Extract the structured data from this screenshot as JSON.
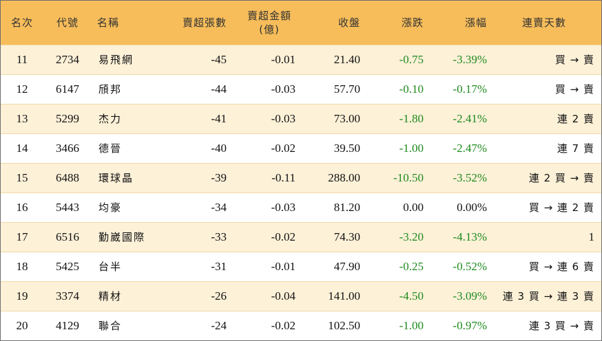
{
  "headers": {
    "rank": "名次",
    "code": "代號",
    "name": "名稱",
    "net_sell_lots": "賣超張數",
    "net_sell_amount_line1": "賣超金額",
    "net_sell_amount_line2": "(億)",
    "close": "收盤",
    "change": "漲跌",
    "change_pct": "漲幅",
    "streak": "連賣天數"
  },
  "rows": [
    {
      "rank": "11",
      "code": "2734",
      "name": "易飛網",
      "lots": "-45",
      "amount": "-0.01",
      "close": "21.40",
      "change": "-0.75",
      "pct": "-3.39%",
      "streak": "買 → 賣"
    },
    {
      "rank": "12",
      "code": "6147",
      "name": "頎邦",
      "lots": "-44",
      "amount": "-0.03",
      "close": "57.70",
      "change": "-0.10",
      "pct": "-0.17%",
      "streak": "買 → 賣"
    },
    {
      "rank": "13",
      "code": "5299",
      "name": "杰力",
      "lots": "-41",
      "amount": "-0.03",
      "close": "73.00",
      "change": "-1.80",
      "pct": "-2.41%",
      "streak": "連 2 賣"
    },
    {
      "rank": "14",
      "code": "3466",
      "name": "德晉",
      "lots": "-40",
      "amount": "-0.02",
      "close": "39.50",
      "change": "-1.00",
      "pct": "-2.47%",
      "streak": "連 7 賣"
    },
    {
      "rank": "15",
      "code": "6488",
      "name": "環球晶",
      "lots": "-39",
      "amount": "-0.11",
      "close": "288.00",
      "change": "-10.50",
      "pct": "-3.52%",
      "streak": "連 2 買 → 賣"
    },
    {
      "rank": "16",
      "code": "5443",
      "name": "均豪",
      "lots": "-34",
      "amount": "-0.03",
      "close": "81.20",
      "change": "0.00",
      "pct": "0.00%",
      "streak": "買 → 連 2 賣"
    },
    {
      "rank": "17",
      "code": "6516",
      "name": "勤崴國際",
      "lots": "-33",
      "amount": "-0.02",
      "close": "74.30",
      "change": "-3.20",
      "pct": "-4.13%",
      "streak": "1"
    },
    {
      "rank": "18",
      "code": "5425",
      "name": "台半",
      "lots": "-31",
      "amount": "-0.01",
      "close": "47.90",
      "change": "-0.25",
      "pct": "-0.52%",
      "streak": "買 → 連 6 賣"
    },
    {
      "rank": "19",
      "code": "3374",
      "name": "精材",
      "lots": "-26",
      "amount": "-0.04",
      "close": "141.00",
      "change": "-4.50",
      "pct": "-3.09%",
      "streak": "連 3 買 → 連 3 賣"
    },
    {
      "rank": "20",
      "code": "4129",
      "name": "聯合",
      "lots": "-24",
      "amount": "-0.02",
      "close": "102.50",
      "change": "-1.00",
      "pct": "-0.97%",
      "streak": "連 3 買 → 賣"
    }
  ],
  "colors": {
    "header_bg": "#f7bd5a",
    "odd_row_bg": "#fdf1d8",
    "negative_text": "#1e8a1e"
  }
}
